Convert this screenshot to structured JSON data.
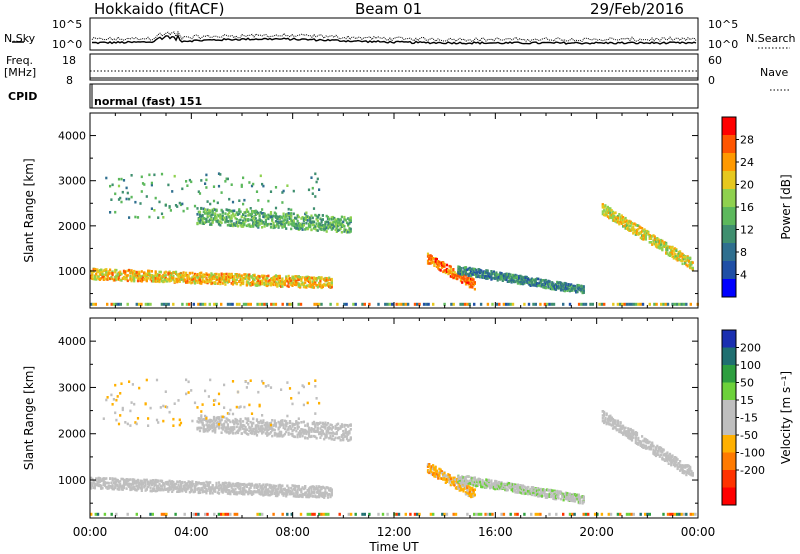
{
  "header": {
    "station": "Hokkaido (fitACF)",
    "beam": "Beam 01",
    "date": "29/Feb/2016"
  },
  "aux_panels": {
    "left_labels": {
      "nsky": "N.Sky",
      "freq": "Freq.",
      "freq_unit": "[MHz]",
      "cpid": "CPID"
    },
    "right_labels": {
      "nsearch": "N.Search",
      "nave": "Nave"
    },
    "noise_ticks_left": [
      "10^5",
      "10^0"
    ],
    "noise_ticks_right": [
      "10^5",
      "10^0"
    ],
    "freq_ticks": [
      "18",
      "8"
    ],
    "nave_ticks": [
      "60",
      "0"
    ],
    "cpid_text": "normal (fast) 151"
  },
  "colors": {
    "power": [
      "#0000ff",
      "#1f4fa6",
      "#2f6f8f",
      "#3f8f6f",
      "#5cb85c",
      "#8fd14f",
      "#e6c81e",
      "#ff9900",
      "#ff5500",
      "#ff0000"
    ],
    "velocity": [
      "#1a2fb0",
      "#1f6f70",
      "#2d9e3f",
      "#6cd13a",
      "#bfbfbf",
      "#bfbfbf",
      "#ffb000",
      "#ff7a00",
      "#ff3300",
      "#ff0000"
    ]
  },
  "chart_data": [
    {
      "type": "heatmap",
      "name": "power-panel",
      "ylabel": "Slant Range [km]",
      "ylim": [
        180,
        4500
      ],
      "yticks": [
        1000,
        2000,
        3000,
        4000
      ],
      "xlim": [
        0,
        24
      ],
      "colorbar": {
        "label": "Power [dB]",
        "ticks": [
          4,
          8,
          12,
          16,
          20,
          24,
          28
        ],
        "range": [
          0,
          32
        ]
      },
      "echo_regions": [
        {
          "from": 0,
          "to": 9.5,
          "r0": 960,
          "r1": 760,
          "value": 22,
          "spread": 120
        },
        {
          "from": 4.2,
          "to": 10.3,
          "r0": 2250,
          "r1": 2050,
          "value": 14,
          "spread": 180
        },
        {
          "from": 13.3,
          "to": 15.2,
          "r0": 1300,
          "r1": 700,
          "value": 26,
          "spread": 110
        },
        {
          "from": 14.5,
          "to": 19.5,
          "r0": 1050,
          "r1": 600,
          "value": 10,
          "spread": 90
        },
        {
          "from": 20.2,
          "to": 23.8,
          "r0": 2400,
          "r1": 1150,
          "value": 20,
          "spread": 120
        },
        {
          "from": 0.5,
          "to": 9,
          "r0": 2700,
          "r1": 2700,
          "value": 12,
          "spread": 500
        }
      ]
    },
    {
      "type": "heatmap",
      "name": "velocity-panel",
      "ylabel": "Slant Range [km]",
      "xlabel": "Time UT",
      "ylim": [
        180,
        4500
      ],
      "yticks": [
        1000,
        2000,
        3000,
        4000
      ],
      "xlim": [
        0,
        24
      ],
      "xticks": [
        "00:00",
        "04:00",
        "08:00",
        "12:00",
        "16:00",
        "20:00",
        "00:00"
      ],
      "colorbar": {
        "label": "Velocity [m s⁻¹]",
        "ticks": [
          200,
          100,
          50,
          15,
          -15,
          -50,
          -100,
          -200
        ],
        "range": [
          -250,
          250
        ]
      },
      "echo_regions": [
        {
          "from": 0,
          "to": 9.5,
          "r0": 960,
          "r1": 760,
          "value": 0,
          "spread": 120
        },
        {
          "from": 4.2,
          "to": 10.3,
          "r0": 2250,
          "r1": 2050,
          "value": -10,
          "spread": 180
        },
        {
          "from": 13.3,
          "to": 15.2,
          "r0": 1300,
          "r1": 700,
          "value": -70,
          "spread": 110
        },
        {
          "from": 14.5,
          "to": 19.5,
          "r0": 1050,
          "r1": 600,
          "value": 30,
          "spread": 90
        },
        {
          "from": 20.2,
          "to": 23.8,
          "r0": 2400,
          "r1": 1150,
          "value": 10,
          "spread": 120
        },
        {
          "from": 0.5,
          "to": 9,
          "r0": 2700,
          "r1": 2700,
          "value": -40,
          "spread": 500
        }
      ]
    }
  ]
}
